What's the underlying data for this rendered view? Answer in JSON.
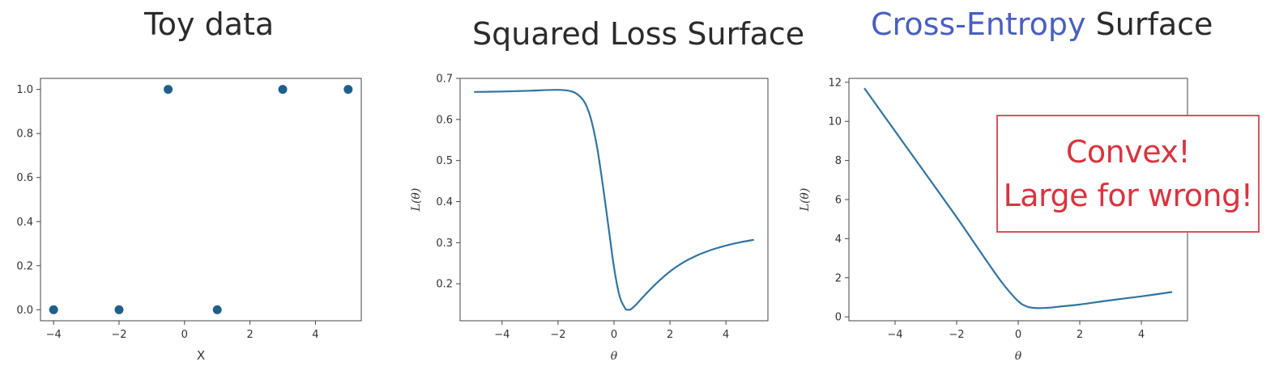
{
  "chart_data": [
    {
      "type": "scatter",
      "title": "Toy data",
      "xlabel": "X",
      "ylabel": "",
      "xlim": [
        -4.4,
        5.4
      ],
      "ylim": [
        -0.05,
        1.05
      ],
      "xticks": [
        -4,
        -2,
        0,
        2,
        4
      ],
      "yticks": [
        0.0,
        0.2,
        0.4,
        0.6,
        0.8,
        1.0
      ],
      "ytick_labels": [
        "0.0",
        "0.2",
        "0.4",
        "0.6",
        "0.8",
        "1.0"
      ],
      "points": [
        {
          "x": -4,
          "y": 0
        },
        {
          "x": -2,
          "y": 0
        },
        {
          "x": -0.5,
          "y": 1
        },
        {
          "x": 1,
          "y": 0
        },
        {
          "x": 3,
          "y": 1
        },
        {
          "x": 5,
          "y": 1
        }
      ],
      "color": "#1f5f8b",
      "grid": false
    },
    {
      "type": "line",
      "title": "Squared Loss Surface",
      "xlabel": "θ",
      "ylabel": "L(θ)",
      "xlim": [
        -5.5,
        5.5
      ],
      "ylim": [
        0.11,
        0.7
      ],
      "xticks": [
        -4,
        -2,
        0,
        2,
        4
      ],
      "yticks": [
        0.2,
        0.3,
        0.4,
        0.5,
        0.6,
        0.7
      ],
      "ytick_labels": [
        "0.2",
        "0.3",
        "0.4",
        "0.5",
        "0.6",
        "0.7"
      ],
      "series": [
        {
          "x": [
            -5,
            -4,
            -3,
            -2,
            -1.5,
            -1.2,
            -1,
            -0.8,
            -0.6,
            -0.4,
            -0.2,
            0,
            0.2,
            0.4,
            0.5,
            0.6,
            0.8,
            1,
            1.5,
            2,
            2.5,
            3,
            3.5,
            4,
            4.5,
            5
          ],
          "values": [
            0.667,
            0.668,
            0.67,
            0.672,
            0.668,
            0.655,
            0.635,
            0.595,
            0.53,
            0.44,
            0.34,
            0.24,
            0.17,
            0.14,
            0.137,
            0.138,
            0.15,
            0.165,
            0.2,
            0.23,
            0.253,
            0.27,
            0.283,
            0.293,
            0.301,
            0.307
          ]
        }
      ],
      "color": "#3274a1",
      "grid": false
    },
    {
      "type": "line",
      "title_prefix": "Cross-Entropy",
      "title_suffix": " Surface",
      "xlabel": "θ",
      "ylabel": "L(θ)",
      "xlim": [
        -5.5,
        5.5
      ],
      "ylim": [
        -0.2,
        12.2
      ],
      "xticks": [
        -4,
        -2,
        0,
        2,
        4
      ],
      "yticks": [
        0,
        2,
        4,
        6,
        8,
        10,
        12
      ],
      "ytick_labels": [
        "0",
        "2",
        "4",
        "6",
        "8",
        "10",
        "12"
      ],
      "series": [
        {
          "x": [
            -5,
            -4,
            -3,
            -2,
            -1.5,
            -1,
            -0.5,
            0,
            0.3,
            0.6,
            1,
            1.5,
            2,
            3,
            4,
            5
          ],
          "values": [
            11.7,
            9.5,
            7.3,
            5.1,
            3.95,
            2.8,
            1.7,
            0.8,
            0.52,
            0.45,
            0.47,
            0.55,
            0.63,
            0.85,
            1.05,
            1.27
          ]
        }
      ],
      "color": "#3274a1",
      "grid": false,
      "annotation": [
        "Convex!",
        "Large for wrong!"
      ],
      "annotation_color": "#d9343f"
    }
  ]
}
